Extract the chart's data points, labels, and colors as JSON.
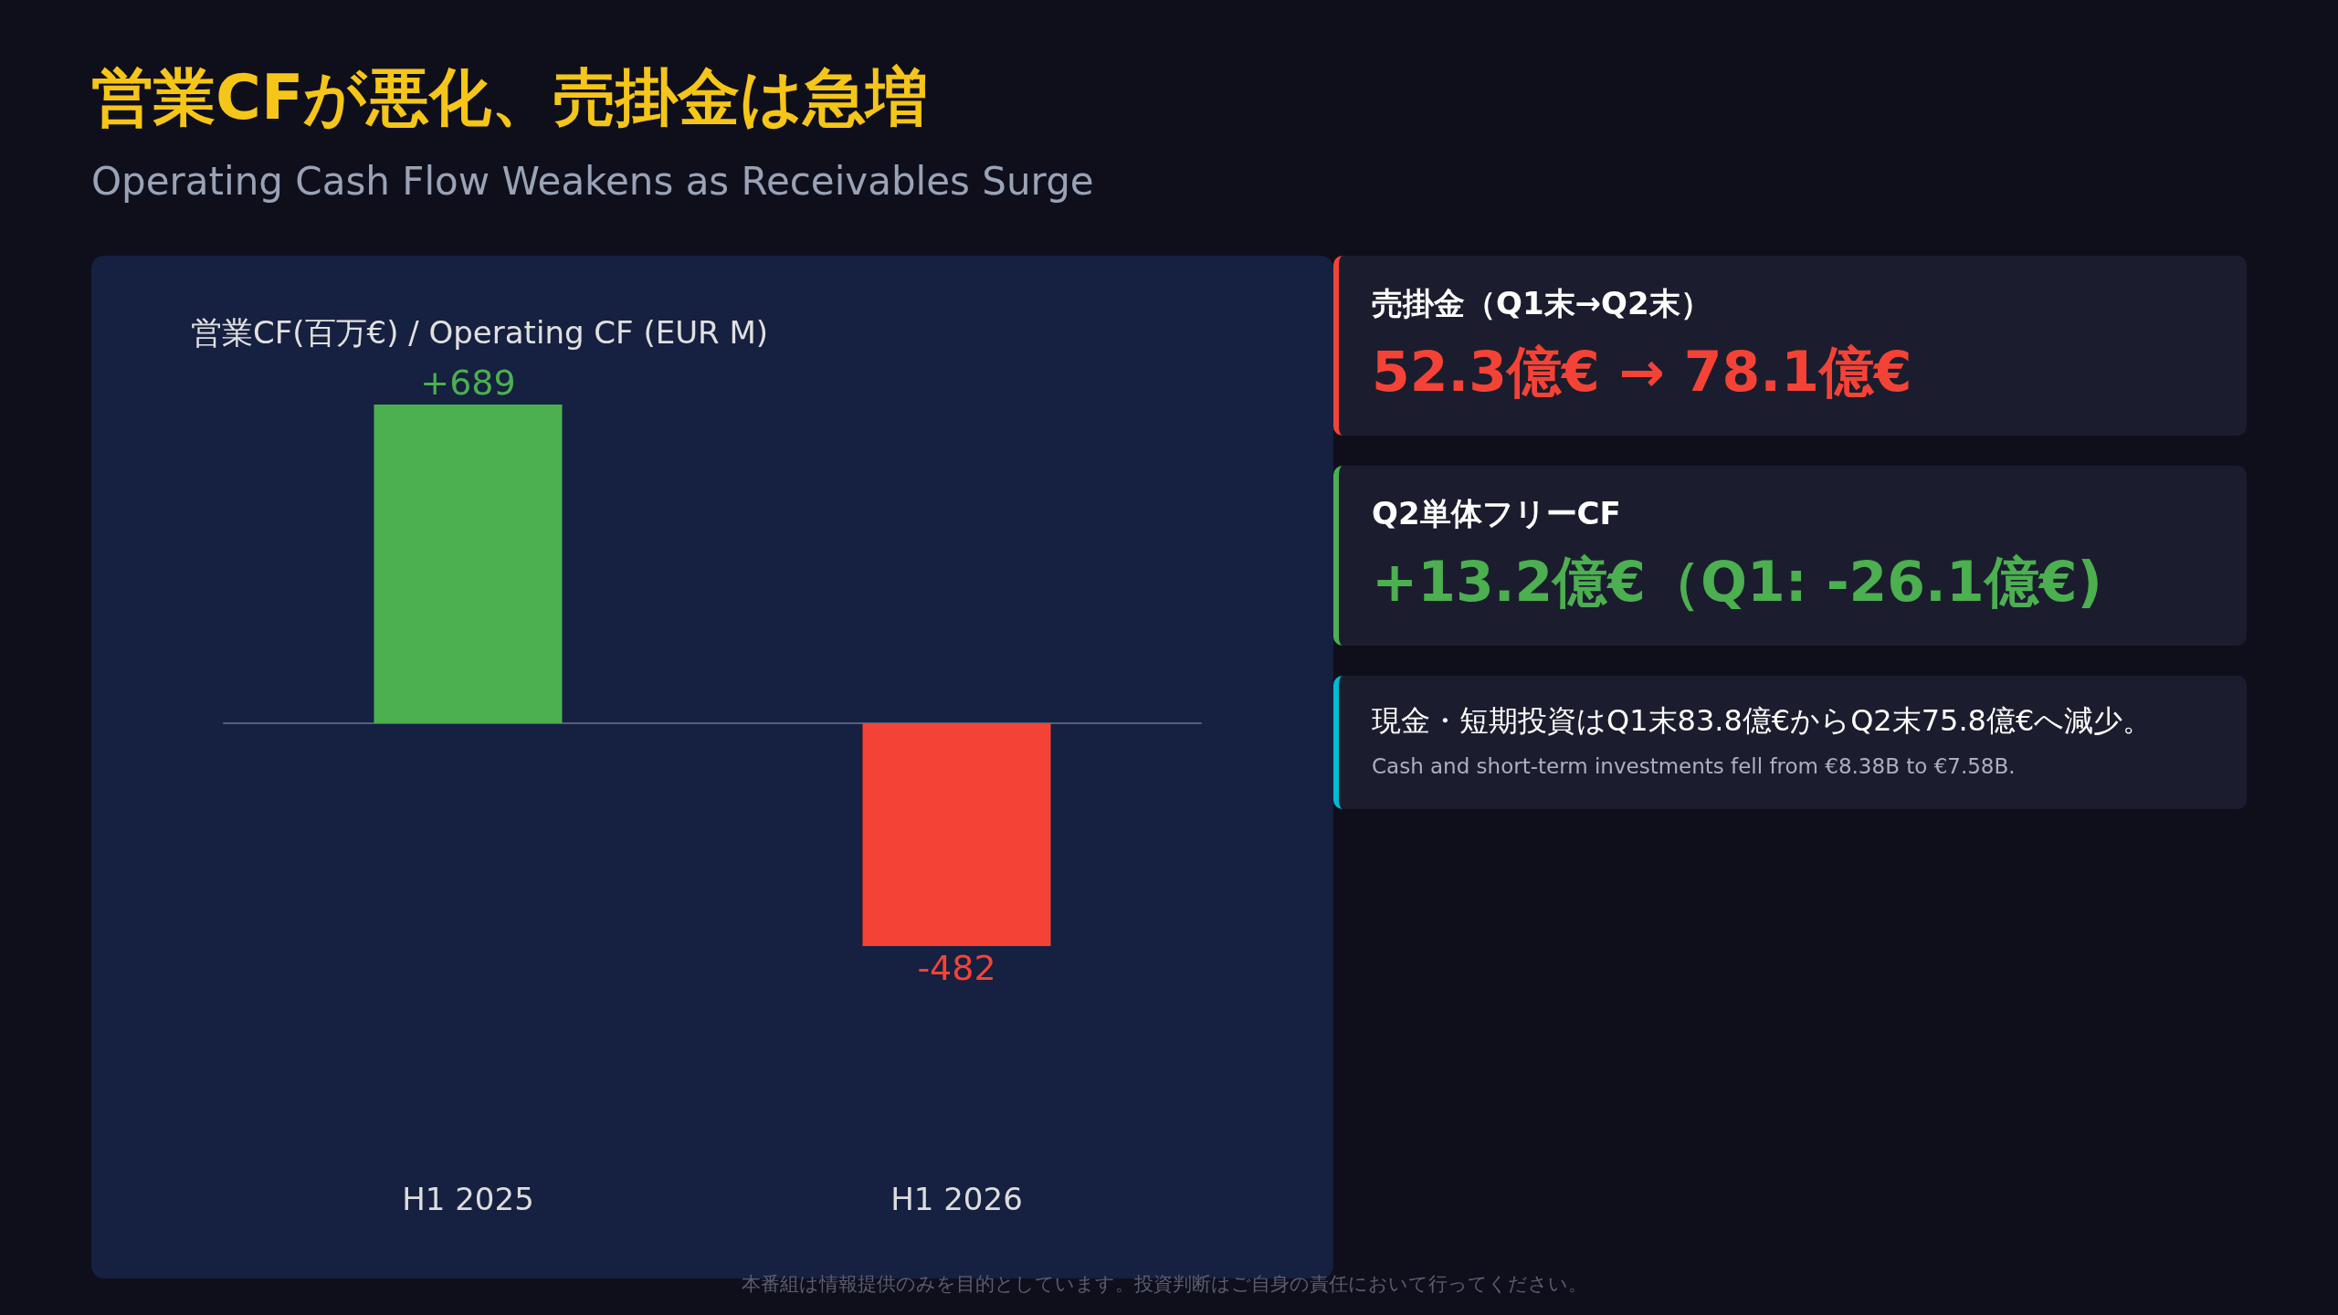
{
  "chart_data": [
    {
      "type": "bar",
      "title": "営業CFが悪化、売掛金は急増",
      "subtitle": "Operating Cash Flow Weakens as Receivables Surge",
      "ylabel": "営業CF(百万€) / Operating CF (EUR M)",
      "categories": [
        "H1 2025",
        "H1 2026"
      ],
      "values": [
        689,
        -482
      ],
      "colors": [
        "#4caf50",
        "#f44336"
      ],
      "value_labels": [
        "+689",
        "-482"
      ],
      "annotations": [
        "本番組は情報提供のみを目的としています。投資判断はご自身の責任において行ってください。"
      ]
    },
    {
      "type": "other",
      "title": "売掛金（Q1末→Q2末）",
      "subtitle": "52.3億€ → 78.1億€",
      "color": "#f44336"
    },
    {
      "type": "other",
      "title": "Q2単体フリーCF",
      "subtitle": "+13.2億€（Q1: -26.1億€)",
      "color": "#4caf50"
    },
    {
      "type": "other",
      "title": "現金・短期投資はQ1末83.8億€からQ2末75.8億€へ減少。",
      "subtitle": "Cash and short-term investments fell from €8.38B to €7.58B.",
      "color": "#00bcd4"
    }
  ]
}
